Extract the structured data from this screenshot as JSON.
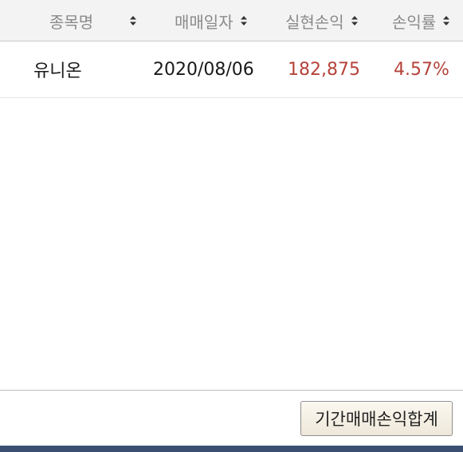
{
  "table": {
    "headers": [
      {
        "label": "종목명",
        "sortable": true
      },
      {
        "label": "매매일자",
        "sortable": true
      },
      {
        "label": "실현손익",
        "sortable": true
      },
      {
        "label": "손익률",
        "sortable": true
      }
    ],
    "rows": [
      {
        "name": "유니온",
        "date": "2020/08/06",
        "realized_pl": "182,875",
        "return_rate": "4.57%"
      }
    ]
  },
  "footer": {
    "period_total_button": "기간매매손익합계"
  },
  "colors": {
    "header_bg": "#f3f3f3",
    "header_text": "#8a8a8a",
    "positive": "#b5433a",
    "bottom_bar": "#3b4f72"
  },
  "icons": {
    "sort": "sort-updown-icon"
  }
}
